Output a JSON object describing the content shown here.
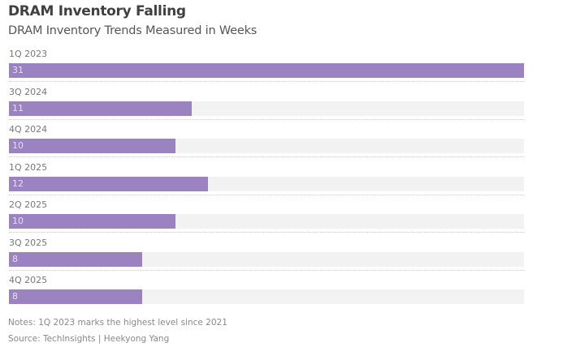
{
  "chart_data": {
    "type": "bar",
    "orientation": "horizontal",
    "title": "DRAM Inventory Falling",
    "subtitle": "DRAM Inventory Trends Measured in Weeks",
    "categories": [
      "1Q 2023",
      "3Q 2024",
      "4Q 2024",
      "1Q 2025",
      "2Q 2025",
      "3Q 2025",
      "4Q 2025"
    ],
    "values": [
      31,
      11,
      10,
      12,
      10,
      8,
      8
    ],
    "xlim": [
      0,
      31
    ],
    "bar_color": "#9b82c1",
    "track_color": "#f2f2f2",
    "data_labels": true,
    "grid": false
  },
  "notes": "Notes: 1Q 2023 marks the highest level since 2021",
  "source": "Source: TechInsights | Heekyong Yang"
}
